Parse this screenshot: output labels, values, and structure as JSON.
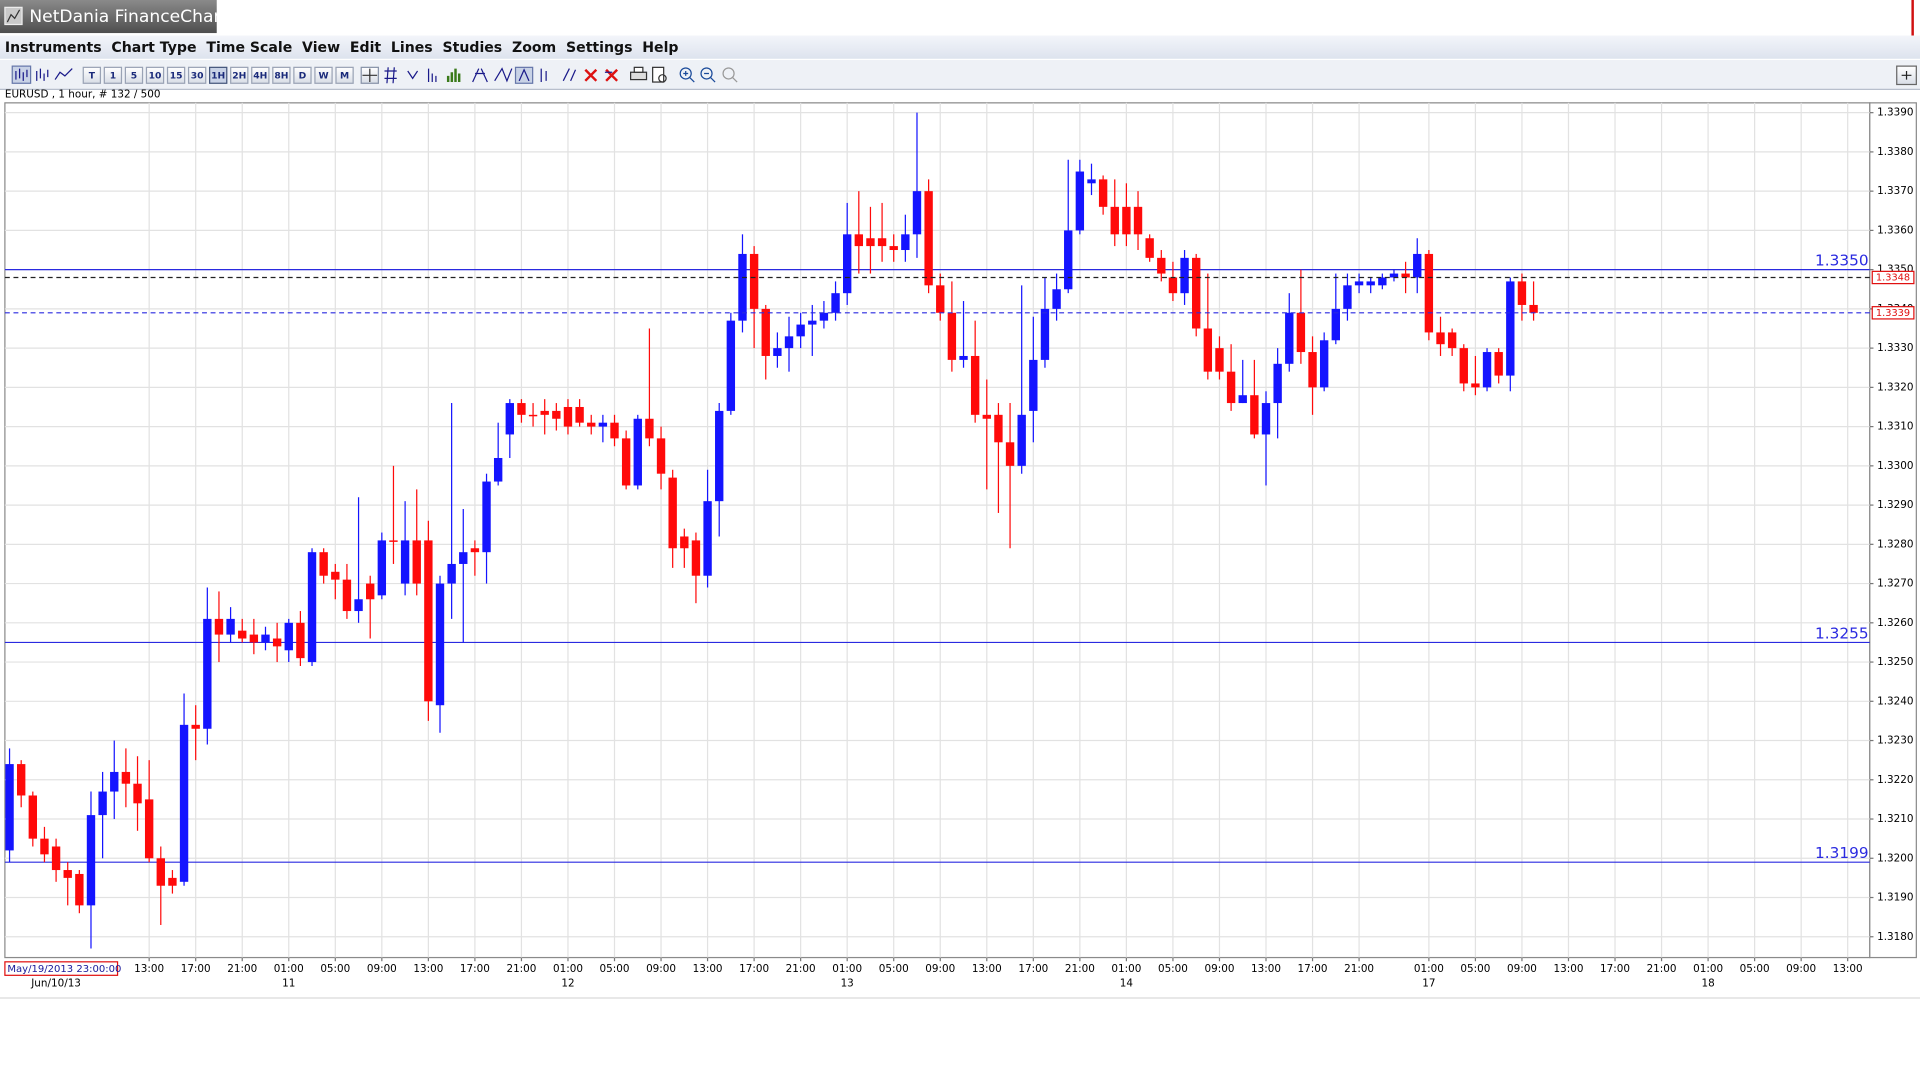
{
  "window": {
    "title": "NetDania FinanceChart"
  },
  "menu": [
    "Instruments",
    "Chart Type",
    "Time Scale",
    "View",
    "Edit",
    "Lines",
    "Studies",
    "Zoom",
    "Settings",
    "Help"
  ],
  "toolbar": {
    "timeframes": [
      "T",
      "1",
      "5",
      "10",
      "15",
      "30",
      "1H",
      "2H",
      "4H",
      "8H",
      "D",
      "W",
      "M"
    ],
    "selected": "1H"
  },
  "chart_data": {
    "type": "candlestick",
    "subtitle": "EURUSD , 1 hour, # 132 / 500",
    "cursor_label": "May/19/2013 23:00:00",
    "up_color": "#1414ff",
    "down_color": "#ff0a0a",
    "open": [
      1.3202,
      1.3224,
      1.3216,
      1.3205,
      1.3203,
      1.3197,
      1.3196,
      1.3188,
      1.3211,
      1.3217,
      1.3222,
      1.3219,
      1.3215,
      1.32,
      1.3195,
      1.3194,
      1.3234,
      1.3233,
      1.3261,
      1.3257,
      1.3258,
      1.3257,
      1.3255,
      1.3256,
      1.3253,
      1.326,
      1.325,
      1.3278,
      1.3273,
      1.3271,
      1.3263,
      1.327,
      1.3267,
      1.3281,
      1.327,
      1.3281,
      1.3281,
      1.3239,
      1.327,
      1.3275,
      1.3279,
      1.3278,
      1.3296,
      1.3308,
      1.3316,
      1.3313,
      1.3314,
      1.3314,
      1.3315,
      1.3315,
      1.3311,
      1.331,
      1.3311,
      1.3307,
      1.3295,
      1.3312,
      1.3307,
      1.3297,
      1.3282,
      1.3281,
      1.3272,
      1.3291,
      1.3314,
      1.3337,
      1.3354,
      1.334,
      1.3328,
      1.333,
      1.3333,
      1.3336,
      1.3337,
      1.3339,
      1.3344,
      1.3359,
      1.3358,
      1.3358,
      1.3356,
      1.3355,
      1.3359,
      1.337,
      1.3346,
      1.3339,
      1.3327,
      1.3328,
      1.3313,
      1.3313,
      1.3306,
      1.33,
      1.3314,
      1.3327,
      1.334,
      1.3345,
      1.336,
      1.3372,
      1.3373,
      1.3366,
      1.3366,
      1.3366,
      1.3358,
      1.3353,
      1.3348,
      1.3344,
      1.3353,
      1.3335,
      1.333,
      1.3324,
      1.3316,
      1.3318,
      1.3308,
      1.3316,
      1.3326,
      1.3339,
      1.3329,
      1.332,
      1.3332,
      1.334,
      1.3346,
      1.3346,
      1.3346,
      1.3348,
      1.3349,
      1.3348,
      1.3354,
      1.3334,
      1.3334,
      1.333,
      1.3321,
      1.332,
      1.3329,
      1.3323,
      1.3347,
      1.3341
    ],
    "high": [
      1.3228,
      1.3225,
      1.3217,
      1.3208,
      1.3205,
      1.3199,
      1.3197,
      1.3217,
      1.3222,
      1.323,
      1.3228,
      1.3226,
      1.3225,
      1.3203,
      1.3197,
      1.3242,
      1.3239,
      1.3269,
      1.3268,
      1.3264,
      1.3261,
      1.3261,
      1.3259,
      1.326,
      1.3261,
      1.3263,
      1.3279,
      1.3279,
      1.3275,
      1.3275,
      1.3292,
      1.3272,
      1.3283,
      1.33,
      1.3291,
      1.3294,
      1.3286,
      1.3272,
      1.3316,
      1.3289,
      1.3281,
      1.3298,
      1.3311,
      1.3317,
      1.3317,
      1.3316,
      1.3317,
      1.3316,
      1.3317,
      1.3317,
      1.3313,
      1.3313,
      1.3313,
      1.3309,
      1.3313,
      1.3335,
      1.331,
      1.3299,
      1.3284,
      1.3283,
      1.3299,
      1.3316,
      1.3339,
      1.3359,
      1.3356,
      1.3341,
      1.3334,
      1.3338,
      1.3339,
      1.3341,
      1.3342,
      1.3347,
      1.3367,
      1.337,
      1.3366,
      1.3367,
      1.3359,
      1.3364,
      1.339,
      1.3373,
      1.3349,
      1.3347,
      1.3342,
      1.3337,
      1.3322,
      1.3316,
      1.3316,
      1.3346,
      1.3338,
      1.3348,
      1.3349,
      1.3378,
      1.3378,
      1.3377,
      1.3374,
      1.3373,
      1.3372,
      1.337,
      1.3359,
      1.3355,
      1.3352,
      1.3355,
      1.3354,
      1.3349,
      1.3333,
      1.3331,
      1.3327,
      1.3327,
      1.3319,
      1.333,
      1.3344,
      1.335,
      1.3333,
      1.3334,
      1.3349,
      1.3349,
      1.3349,
      1.3348,
      1.3349,
      1.335,
      1.3352,
      1.3358,
      1.3355,
      1.3338,
      1.3335,
      1.3331,
      1.3328,
      1.333,
      1.333,
      1.3348,
      1.3349,
      1.3347
    ],
    "low": [
      1.3199,
      1.3213,
      1.3203,
      1.3199,
      1.3194,
      1.3188,
      1.3186,
      1.3177,
      1.32,
      1.321,
      1.3213,
      1.3207,
      1.3199,
      1.3183,
      1.3191,
      1.3193,
      1.3225,
      1.3229,
      1.325,
      1.3255,
      1.3255,
      1.3252,
      1.3253,
      1.325,
      1.325,
      1.3249,
      1.3249,
      1.327,
      1.3266,
      1.3261,
      1.326,
      1.3256,
      1.3266,
      1.3275,
      1.3267,
      1.3267,
      1.3235,
      1.3232,
      1.3261,
      1.3255,
      1.3272,
      1.327,
      1.3295,
      1.3302,
      1.3311,
      1.331,
      1.3308,
      1.3309,
      1.3308,
      1.331,
      1.3308,
      1.3306,
      1.3305,
      1.3294,
      1.3294,
      1.3305,
      1.3294,
      1.3274,
      1.3274,
      1.3265,
      1.3269,
      1.3282,
      1.3313,
      1.3334,
      1.333,
      1.3322,
      1.3325,
      1.3324,
      1.333,
      1.3328,
      1.3335,
      1.3337,
      1.3341,
      1.3349,
      1.3349,
      1.3352,
      1.3352,
      1.3352,
      1.3353,
      1.3344,
      1.3337,
      1.3324,
      1.3325,
      1.3311,
      1.3294,
      1.3288,
      1.3279,
      1.3298,
      1.3306,
      1.3325,
      1.3337,
      1.3344,
      1.3359,
      1.3369,
      1.3364,
      1.3356,
      1.3356,
      1.3355,
      1.3352,
      1.3347,
      1.3342,
      1.3341,
      1.3333,
      1.3322,
      1.3322,
      1.3314,
      1.3316,
      1.3307,
      1.3295,
      1.3307,
      1.3324,
      1.3326,
      1.3313,
      1.3319,
      1.3331,
      1.3337,
      1.3344,
      1.3344,
      1.3345,
      1.3347,
      1.3344,
      1.3344,
      1.3332,
      1.3328,
      1.3328,
      1.3319,
      1.3318,
      1.3319,
      1.3321,
      1.3319,
      1.3337,
      1.3337
    ],
    "close": [
      1.3224,
      1.3216,
      1.3205,
      1.3201,
      1.3197,
      1.3195,
      1.3188,
      1.3211,
      1.3217,
      1.3222,
      1.3219,
      1.3214,
      1.32,
      1.3193,
      1.3193,
      1.3234,
      1.3233,
      1.3261,
      1.3257,
      1.3261,
      1.3256,
      1.3255,
      1.3257,
      1.3254,
      1.326,
      1.3251,
      1.3278,
      1.3272,
      1.3271,
      1.3263,
      1.3266,
      1.3266,
      1.3281,
      1.3281,
      1.3281,
      1.327,
      1.324,
      1.327,
      1.3275,
      1.3278,
      1.3278,
      1.3296,
      1.3302,
      1.3316,
      1.3313,
      1.3313,
      1.3313,
      1.3312,
      1.331,
      1.3311,
      1.331,
      1.3311,
      1.3307,
      1.3295,
      1.3312,
      1.3307,
      1.3298,
      1.3279,
      1.3279,
      1.3272,
      1.3291,
      1.3314,
      1.3337,
      1.3354,
      1.334,
      1.3328,
      1.333,
      1.3333,
      1.3336,
      1.3337,
      1.3339,
      1.3344,
      1.3359,
      1.3356,
      1.3356,
      1.3356,
      1.3355,
      1.3359,
      1.337,
      1.3346,
      1.3339,
      1.3327,
      1.3328,
      1.3313,
      1.3312,
      1.3306,
      1.33,
      1.3313,
      1.3327,
      1.334,
      1.3345,
      1.336,
      1.3375,
      1.3373,
      1.3366,
      1.3359,
      1.3359,
      1.3359,
      1.3353,
      1.3349,
      1.3344,
      1.3353,
      1.3335,
      1.3324,
      1.3324,
      1.3316,
      1.3318,
      1.3308,
      1.3316,
      1.3326,
      1.3339,
      1.3329,
      1.332,
      1.3332,
      1.334,
      1.3346,
      1.3347,
      1.3347,
      1.3348,
      1.3349,
      1.3348,
      1.3354,
      1.3334,
      1.3331,
      1.333,
      1.3321,
      1.332,
      1.3329,
      1.3323,
      1.3347,
      1.3341,
      1.3339
    ],
    "xlim": [
      -0.4,
      159.9
    ],
    "xticks": [
      {
        "value": 12,
        "label": "13:00"
      },
      {
        "value": 16,
        "label": "17:00"
      },
      {
        "value": 20,
        "label": "21:00"
      },
      {
        "value": 24,
        "label": "01:00"
      },
      {
        "value": 28,
        "label": "05:00"
      },
      {
        "value": 32,
        "label": "09:00"
      },
      {
        "value": 36,
        "label": "13:00"
      },
      {
        "value": 40,
        "label": "17:00"
      },
      {
        "value": 44,
        "label": "21:00"
      },
      {
        "value": 48,
        "label": "01:00"
      },
      {
        "value": 52,
        "label": "05:00"
      },
      {
        "value": 56,
        "label": "09:00"
      },
      {
        "value": 60,
        "label": "13:00"
      },
      {
        "value": 64,
        "label": "17:00"
      },
      {
        "value": 68,
        "label": "21:00"
      },
      {
        "value": 72,
        "label": "01:00"
      },
      {
        "value": 76,
        "label": "05:00"
      },
      {
        "value": 80,
        "label": "09:00"
      },
      {
        "value": 84,
        "label": "13:00"
      },
      {
        "value": 88,
        "label": "17:00"
      },
      {
        "value": 92,
        "label": "21:00"
      },
      {
        "value": 96,
        "label": "01:00"
      },
      {
        "value": 100,
        "label": "05:00"
      },
      {
        "value": 104,
        "label": "09:00"
      },
      {
        "value": 108,
        "label": "13:00"
      },
      {
        "value": 112,
        "label": "17:00"
      },
      {
        "value": 116,
        "label": "21:00"
      },
      {
        "value": 122,
        "label": "01:00"
      },
      {
        "value": 126,
        "label": "05:00"
      },
      {
        "value": 130,
        "label": "09:00"
      },
      {
        "value": 134,
        "label": "13:00"
      },
      {
        "value": 138,
        "label": "17:00"
      },
      {
        "value": 142,
        "label": "21:00"
      },
      {
        "value": 146,
        "label": "01:00"
      },
      {
        "value": 150,
        "label": "05:00"
      },
      {
        "value": 154,
        "label": "09:00"
      },
      {
        "value": 158,
        "label": "13:00"
      }
    ],
    "date_labels": [
      {
        "value": 4,
        "label": "Jun/10/13"
      },
      {
        "value": 24,
        "label": "11"
      },
      {
        "value": 48,
        "label": "12"
      },
      {
        "value": 72,
        "label": "13"
      },
      {
        "value": 96,
        "label": "14"
      },
      {
        "value": 122,
        "label": "17"
      },
      {
        "value": 146,
        "label": "18"
      }
    ],
    "ylim": [
      1.31747,
      1.33925
    ],
    "yticks": [
      {
        "value": 1.318,
        "label": "1.3180"
      },
      {
        "value": 1.319,
        "label": "1.3190"
      },
      {
        "value": 1.32,
        "label": "1.3200"
      },
      {
        "value": 1.321,
        "label": "1.3210"
      },
      {
        "value": 1.322,
        "label": "1.3220"
      },
      {
        "value": 1.323,
        "label": "1.3230"
      },
      {
        "value": 1.324,
        "label": "1.3240"
      },
      {
        "value": 1.325,
        "label": "1.3250"
      },
      {
        "value": 1.326,
        "label": "1.3260"
      },
      {
        "value": 1.327,
        "label": "1.3270"
      },
      {
        "value": 1.328,
        "label": "1.3280"
      },
      {
        "value": 1.329,
        "label": "1.3290"
      },
      {
        "value": 1.33,
        "label": "1.3300"
      },
      {
        "value": 1.331,
        "label": "1.3310"
      },
      {
        "value": 1.332,
        "label": "1.3320"
      },
      {
        "value": 1.333,
        "label": "1.3330"
      },
      {
        "value": 1.334,
        "label": "1.3340"
      },
      {
        "value": 1.335,
        "label": "1.3350"
      },
      {
        "value": 1.336,
        "label": "1.3360"
      },
      {
        "value": 1.337,
        "label": "1.3370"
      },
      {
        "value": 1.338,
        "label": "1.3380"
      },
      {
        "value": 1.339,
        "label": "1.3390"
      }
    ],
    "grid": true,
    "hline_color": "#2a2ae0",
    "hlines": [
      {
        "value": 1.335,
        "label": "1.3350"
      },
      {
        "value": 1.3255,
        "label": "1.3255"
      },
      {
        "value": 1.3199,
        "label": "1.3199"
      }
    ],
    "price_markers": [
      {
        "value": 1.3348,
        "label": "1.3348",
        "color": "#222222"
      },
      {
        "value": 1.3339,
        "label": "1.3339",
        "color": "#2a2ae0"
      }
    ]
  }
}
